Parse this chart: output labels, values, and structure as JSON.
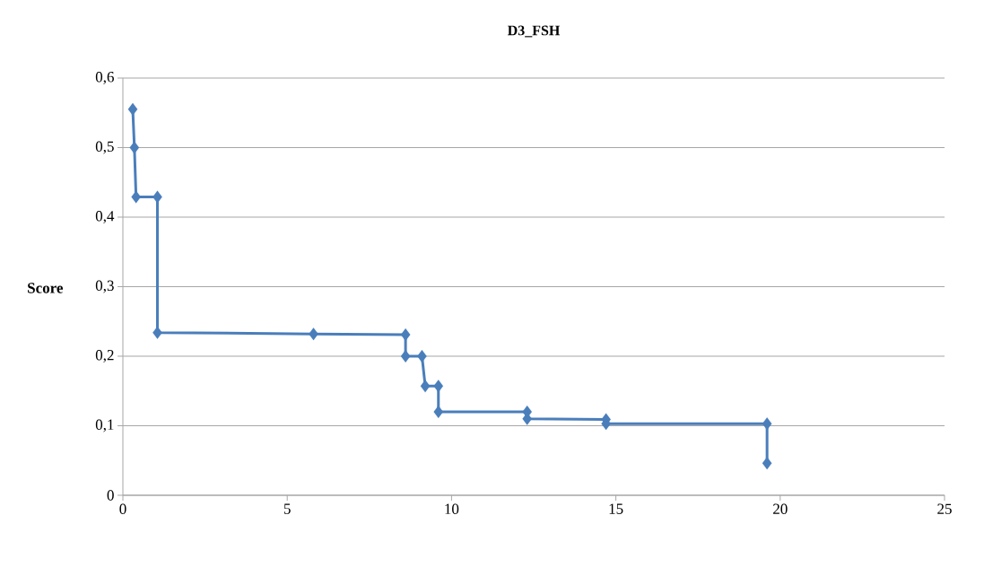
{
  "chart_data": {
    "type": "line",
    "title": "D3_FSH",
    "ylabel": "Score",
    "x": [
      0.3,
      0.35,
      0.4,
      1.05,
      1.05,
      5.8,
      8.6,
      8.6,
      9.1,
      9.2,
      9.6,
      9.6,
      12.3,
      12.3,
      14.7,
      14.7,
      19.6,
      19.6
    ],
    "values": [
      0.555,
      0.5,
      0.429,
      0.429,
      0.234,
      0.232,
      0.231,
      0.2,
      0.2,
      0.157,
      0.157,
      0.12,
      0.12,
      0.11,
      0.109,
      0.103,
      0.103,
      0.046
    ],
    "color": "#4a7ebb",
    "marker": "diamond",
    "line_style": "solid",
    "grid": "y",
    "xlim": [
      0,
      25
    ],
    "xticks": [
      0,
      5,
      10,
      15,
      20,
      25
    ],
    "ylim": [
      0,
      0.6
    ],
    "yticks": [
      {
        "value": 0,
        "label": "0"
      },
      {
        "value": 0.1,
        "label": "0,1"
      },
      {
        "value": 0.2,
        "label": "0,2"
      },
      {
        "value": 0.3,
        "label": "0,3"
      },
      {
        "value": 0.4,
        "label": "0,4"
      },
      {
        "value": 0.5,
        "label": "0,5"
      },
      {
        "value": 0.6,
        "label": "0,6"
      }
    ]
  }
}
